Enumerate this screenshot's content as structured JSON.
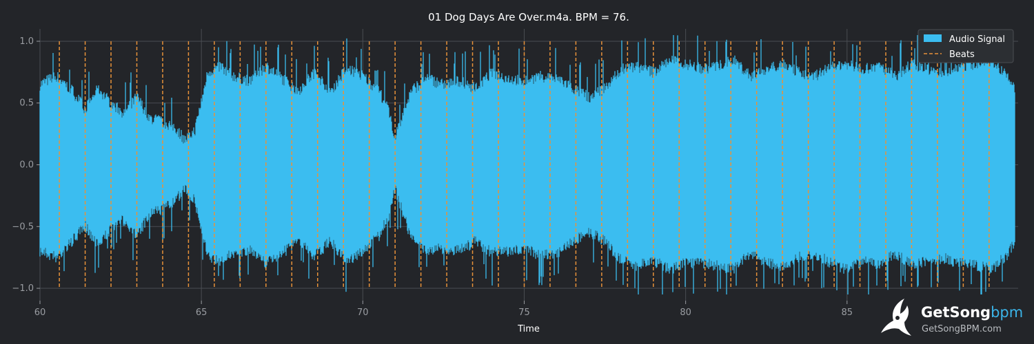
{
  "chart_data": {
    "type": "area",
    "title": "01 Dog Days Are Over.m4a. BPM =  76.",
    "xlabel": "Time",
    "ylabel": "",
    "xlim": [
      60,
      90.3
    ],
    "ylim": [
      -1.1,
      1.1
    ],
    "x_ticks": [
      60,
      65,
      70,
      75,
      80,
      85
    ],
    "x_tick_labels": [
      "60",
      "65",
      "70",
      "75",
      "80",
      "85"
    ],
    "y_ticks": [
      1.0,
      0.5,
      0.0,
      -0.5,
      -1.0
    ],
    "y_tick_labels": [
      "1.0",
      "0.5",
      "0.0",
      "−0.5",
      "−1.0"
    ],
    "grid": true,
    "legend_position": "top-right",
    "series": [
      {
        "name": "Audio Signal",
        "color": "#3bbdf0",
        "x_start": 60.0,
        "x_end": 90.2,
        "envelope_x": [
          60.0,
          60.5,
          61.0,
          61.4,
          61.8,
          62.2,
          62.6,
          63.0,
          63.4,
          63.8,
          64.2,
          64.5,
          64.8,
          65.2,
          65.6,
          66.0,
          66.5,
          67.0,
          67.5,
          68.0,
          68.5,
          69.0,
          69.5,
          70.0,
          70.5,
          70.8,
          71.0,
          71.5,
          72.0,
          72.5,
          73.0,
          73.5,
          74.0,
          74.5,
          75.0,
          75.5,
          76.0,
          76.5,
          77.0,
          77.5,
          78.0,
          78.5,
          79.0,
          79.5,
          80.0,
          80.5,
          81.0,
          81.5,
          82.0,
          82.5,
          83.0,
          83.5,
          84.0,
          84.5,
          85.0,
          85.5,
          86.0,
          86.5,
          87.0,
          87.5,
          88.0,
          88.5,
          89.0,
          89.5,
          90.0,
          90.2
        ],
        "envelope_upper": [
          0.65,
          0.72,
          0.6,
          0.45,
          0.62,
          0.5,
          0.42,
          0.55,
          0.38,
          0.35,
          0.3,
          0.2,
          0.28,
          0.75,
          0.8,
          0.72,
          0.68,
          0.8,
          0.7,
          0.6,
          0.75,
          0.6,
          0.78,
          0.72,
          0.6,
          0.45,
          0.22,
          0.6,
          0.7,
          0.65,
          0.68,
          0.62,
          0.75,
          0.7,
          0.68,
          0.72,
          0.7,
          0.62,
          0.55,
          0.62,
          0.78,
          0.8,
          0.75,
          0.85,
          0.82,
          0.78,
          0.8,
          0.85,
          0.72,
          0.78,
          0.82,
          0.75,
          0.72,
          0.8,
          0.82,
          0.78,
          0.8,
          0.72,
          0.82,
          0.78,
          0.75,
          0.8,
          0.82,
          0.85,
          0.7,
          0.62
        ],
        "envelope_lower": [
          -0.7,
          -0.75,
          -0.62,
          -0.5,
          -0.65,
          -0.52,
          -0.45,
          -0.58,
          -0.4,
          -0.36,
          -0.3,
          -0.18,
          -0.3,
          -0.75,
          -0.78,
          -0.72,
          -0.7,
          -0.8,
          -0.72,
          -0.62,
          -0.75,
          -0.62,
          -0.8,
          -0.7,
          -0.58,
          -0.42,
          -0.2,
          -0.6,
          -0.7,
          -0.68,
          -0.7,
          -0.62,
          -0.72,
          -0.7,
          -0.68,
          -0.74,
          -0.72,
          -0.62,
          -0.55,
          -0.62,
          -0.78,
          -0.82,
          -0.78,
          -0.85,
          -0.8,
          -0.8,
          -0.82,
          -0.85,
          -0.72,
          -0.8,
          -0.82,
          -0.75,
          -0.72,
          -0.8,
          -0.85,
          -0.78,
          -0.82,
          -0.72,
          -0.82,
          -0.78,
          -0.76,
          -0.8,
          -0.82,
          -0.85,
          -0.72,
          -0.62
        ]
      },
      {
        "name": "Beats",
        "color": "#e8923a",
        "style": "dashed",
        "x": [
          60.6,
          61.4,
          62.2,
          63.0,
          63.8,
          64.6,
          65.4,
          66.2,
          67.0,
          67.8,
          68.6,
          69.4,
          70.2,
          71.0,
          71.8,
          72.6,
          73.4,
          74.2,
          75.0,
          75.8,
          76.6,
          77.4,
          78.2,
          79.0,
          79.8,
          80.6,
          81.4,
          82.2,
          83.0,
          83.8,
          84.6,
          85.4,
          86.2,
          87.0,
          87.8,
          88.6,
          89.4
        ]
      }
    ]
  },
  "watermark": {
    "brand": "GetSong",
    "brand_suffix": "bpm",
    "url": "GetSongBPM.com"
  }
}
